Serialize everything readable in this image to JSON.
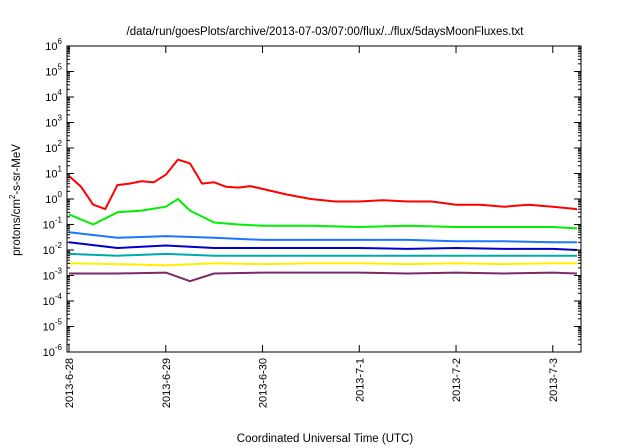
{
  "chart_data": {
    "type": "line",
    "title": "/data/run/goesPlots/archive/2013-07-03/07:00/flux/../flux/5daysMoonFluxes.txt",
    "xlabel": "Coordinated Universal Time (UTC)",
    "ylabel": "protons/cm²-s-sr-MeV",
    "ylabel_parts": {
      "base": "protons/cm",
      "sup": "2",
      "rest": "-s-sr-MeV"
    },
    "yscale": "log",
    "ylim": [
      1e-06,
      1000000.0
    ],
    "xlim": [
      "2013-06-27T23:30",
      "2013-07-03T07:00"
    ],
    "y_ticks": [
      {
        "label": "10",
        "exp": "-6"
      },
      {
        "label": "10",
        "exp": "-5"
      },
      {
        "label": "10",
        "exp": "-4"
      },
      {
        "label": "10",
        "exp": "-3"
      },
      {
        "label": "10",
        "exp": "-2"
      },
      {
        "label": "10",
        "exp": "-1"
      },
      {
        "label": "10",
        "exp": "0"
      },
      {
        "label": "10",
        "exp": "1"
      },
      {
        "label": "10",
        "exp": "2"
      },
      {
        "label": "10",
        "exp": "3"
      },
      {
        "label": "10",
        "exp": "4"
      },
      {
        "label": "10",
        "exp": "5"
      },
      {
        "label": "10",
        "exp": "6"
      }
    ],
    "x_ticks": [
      "2013-6-28",
      "2013-6-29",
      "2013-6-30",
      "2013-7-1",
      "2013-7-2",
      "2013-7-3"
    ],
    "grid": false,
    "legend": "none",
    "series": [
      {
        "color": "#ff0000",
        "x": [
          "2013-06-28T00:00",
          "2013-06-28T03:00",
          "2013-06-28T06:00",
          "2013-06-28T09:00",
          "2013-06-28T12:00",
          "2013-06-28T15:00",
          "2013-06-28T18:00",
          "2013-06-28T21:00",
          "2013-06-29T00:00",
          "2013-06-29T03:00",
          "2013-06-29T06:00",
          "2013-06-29T09:00",
          "2013-06-29T12:00",
          "2013-06-29T15:00",
          "2013-06-29T18:00",
          "2013-06-29T21:00",
          "2013-06-30T00:00",
          "2013-06-30T06:00",
          "2013-06-30T12:00",
          "2013-06-30T18:00",
          "2013-07-01T00:00",
          "2013-07-01T06:00",
          "2013-07-01T12:00",
          "2013-07-01T18:00",
          "2013-07-02T00:00",
          "2013-07-02T06:00",
          "2013-07-02T12:00",
          "2013-07-02T18:00",
          "2013-07-03T00:00",
          "2013-07-03T06:00"
        ],
        "values": [
          8.0,
          3.0,
          0.6,
          0.4,
          3.5,
          4.0,
          5.0,
          4.5,
          9.0,
          35,
          25,
          4.0,
          4.5,
          3.0,
          2.8,
          3.2,
          2.5,
          1.5,
          1.0,
          0.8,
          0.8,
          0.9,
          0.8,
          0.8,
          0.6,
          0.6,
          0.5,
          0.6,
          0.5,
          0.4
        ]
      },
      {
        "color": "#00ee00",
        "x": [
          "2013-06-28T00:00",
          "2013-06-28T06:00",
          "2013-06-28T12:00",
          "2013-06-28T18:00",
          "2013-06-29T00:00",
          "2013-06-29T03:00",
          "2013-06-29T06:00",
          "2013-06-29T12:00",
          "2013-06-29T18:00",
          "2013-06-30T00:00",
          "2013-06-30T12:00",
          "2013-07-01T00:00",
          "2013-07-01T12:00",
          "2013-07-02T00:00",
          "2013-07-02T12:00",
          "2013-07-03T00:00",
          "2013-07-03T06:00"
        ],
        "values": [
          0.25,
          0.1,
          0.3,
          0.35,
          0.5,
          1.0,
          0.35,
          0.12,
          0.1,
          0.09,
          0.09,
          0.08,
          0.09,
          0.08,
          0.08,
          0.08,
          0.07
        ]
      },
      {
        "color": "#1a75ff",
        "x": [
          "2013-06-28T00:00",
          "2013-06-28T12:00",
          "2013-06-29T00:00",
          "2013-06-29T12:00",
          "2013-06-30T00:00",
          "2013-06-30T12:00",
          "2013-07-01T00:00",
          "2013-07-01T12:00",
          "2013-07-02T00:00",
          "2013-07-02T12:00",
          "2013-07-03T00:00",
          "2013-07-03T06:00"
        ],
        "values": [
          0.05,
          0.03,
          0.035,
          0.03,
          0.025,
          0.025,
          0.025,
          0.025,
          0.022,
          0.022,
          0.02,
          0.02
        ]
      },
      {
        "color": "#0000cc",
        "x": [
          "2013-06-28T00:00",
          "2013-06-28T12:00",
          "2013-06-29T00:00",
          "2013-06-29T12:00",
          "2013-06-30T00:00",
          "2013-06-30T12:00",
          "2013-07-01T00:00",
          "2013-07-01T12:00",
          "2013-07-02T00:00",
          "2013-07-02T12:00",
          "2013-07-03T00:00",
          "2013-07-03T06:00"
        ],
        "values": [
          0.02,
          0.012,
          0.015,
          0.012,
          0.012,
          0.012,
          0.012,
          0.011,
          0.012,
          0.011,
          0.011,
          0.01
        ]
      },
      {
        "color": "#00aaaa",
        "x": [
          "2013-06-28T00:00",
          "2013-06-28T12:00",
          "2013-06-29T00:00",
          "2013-06-29T12:00",
          "2013-06-30T00:00",
          "2013-06-30T12:00",
          "2013-07-01T00:00",
          "2013-07-01T12:00",
          "2013-07-02T00:00",
          "2013-07-02T12:00",
          "2013-07-03T00:00",
          "2013-07-03T06:00"
        ],
        "values": [
          0.007,
          0.006,
          0.007,
          0.006,
          0.006,
          0.006,
          0.006,
          0.006,
          0.006,
          0.006,
          0.006,
          0.006
        ]
      },
      {
        "color": "#ffee00",
        "x": [
          "2013-06-28T00:00",
          "2013-06-28T12:00",
          "2013-06-29T00:00",
          "2013-06-29T12:00",
          "2013-06-30T00:00",
          "2013-06-30T12:00",
          "2013-07-01T00:00",
          "2013-07-01T12:00",
          "2013-07-02T00:00",
          "2013-07-02T12:00",
          "2013-07-03T00:00",
          "2013-07-03T06:00"
        ],
        "values": [
          0.003,
          0.0028,
          0.0025,
          0.003,
          0.0028,
          0.003,
          0.003,
          0.0028,
          0.003,
          0.0028,
          0.003,
          0.003
        ]
      },
      {
        "color": "#7a2a6a",
        "x": [
          "2013-06-28T00:00",
          "2013-06-28T12:00",
          "2013-06-29T00:00",
          "2013-06-29T06:00",
          "2013-06-29T12:00",
          "2013-06-30T00:00",
          "2013-06-30T12:00",
          "2013-07-01T00:00",
          "2013-07-01T12:00",
          "2013-07-02T00:00",
          "2013-07-02T12:00",
          "2013-07-03T00:00",
          "2013-07-03T06:00"
        ],
        "values": [
          0.0012,
          0.0012,
          0.0013,
          0.0006,
          0.0012,
          0.0013,
          0.0013,
          0.0013,
          0.0012,
          0.0013,
          0.0012,
          0.0013,
          0.0012
        ]
      }
    ]
  }
}
